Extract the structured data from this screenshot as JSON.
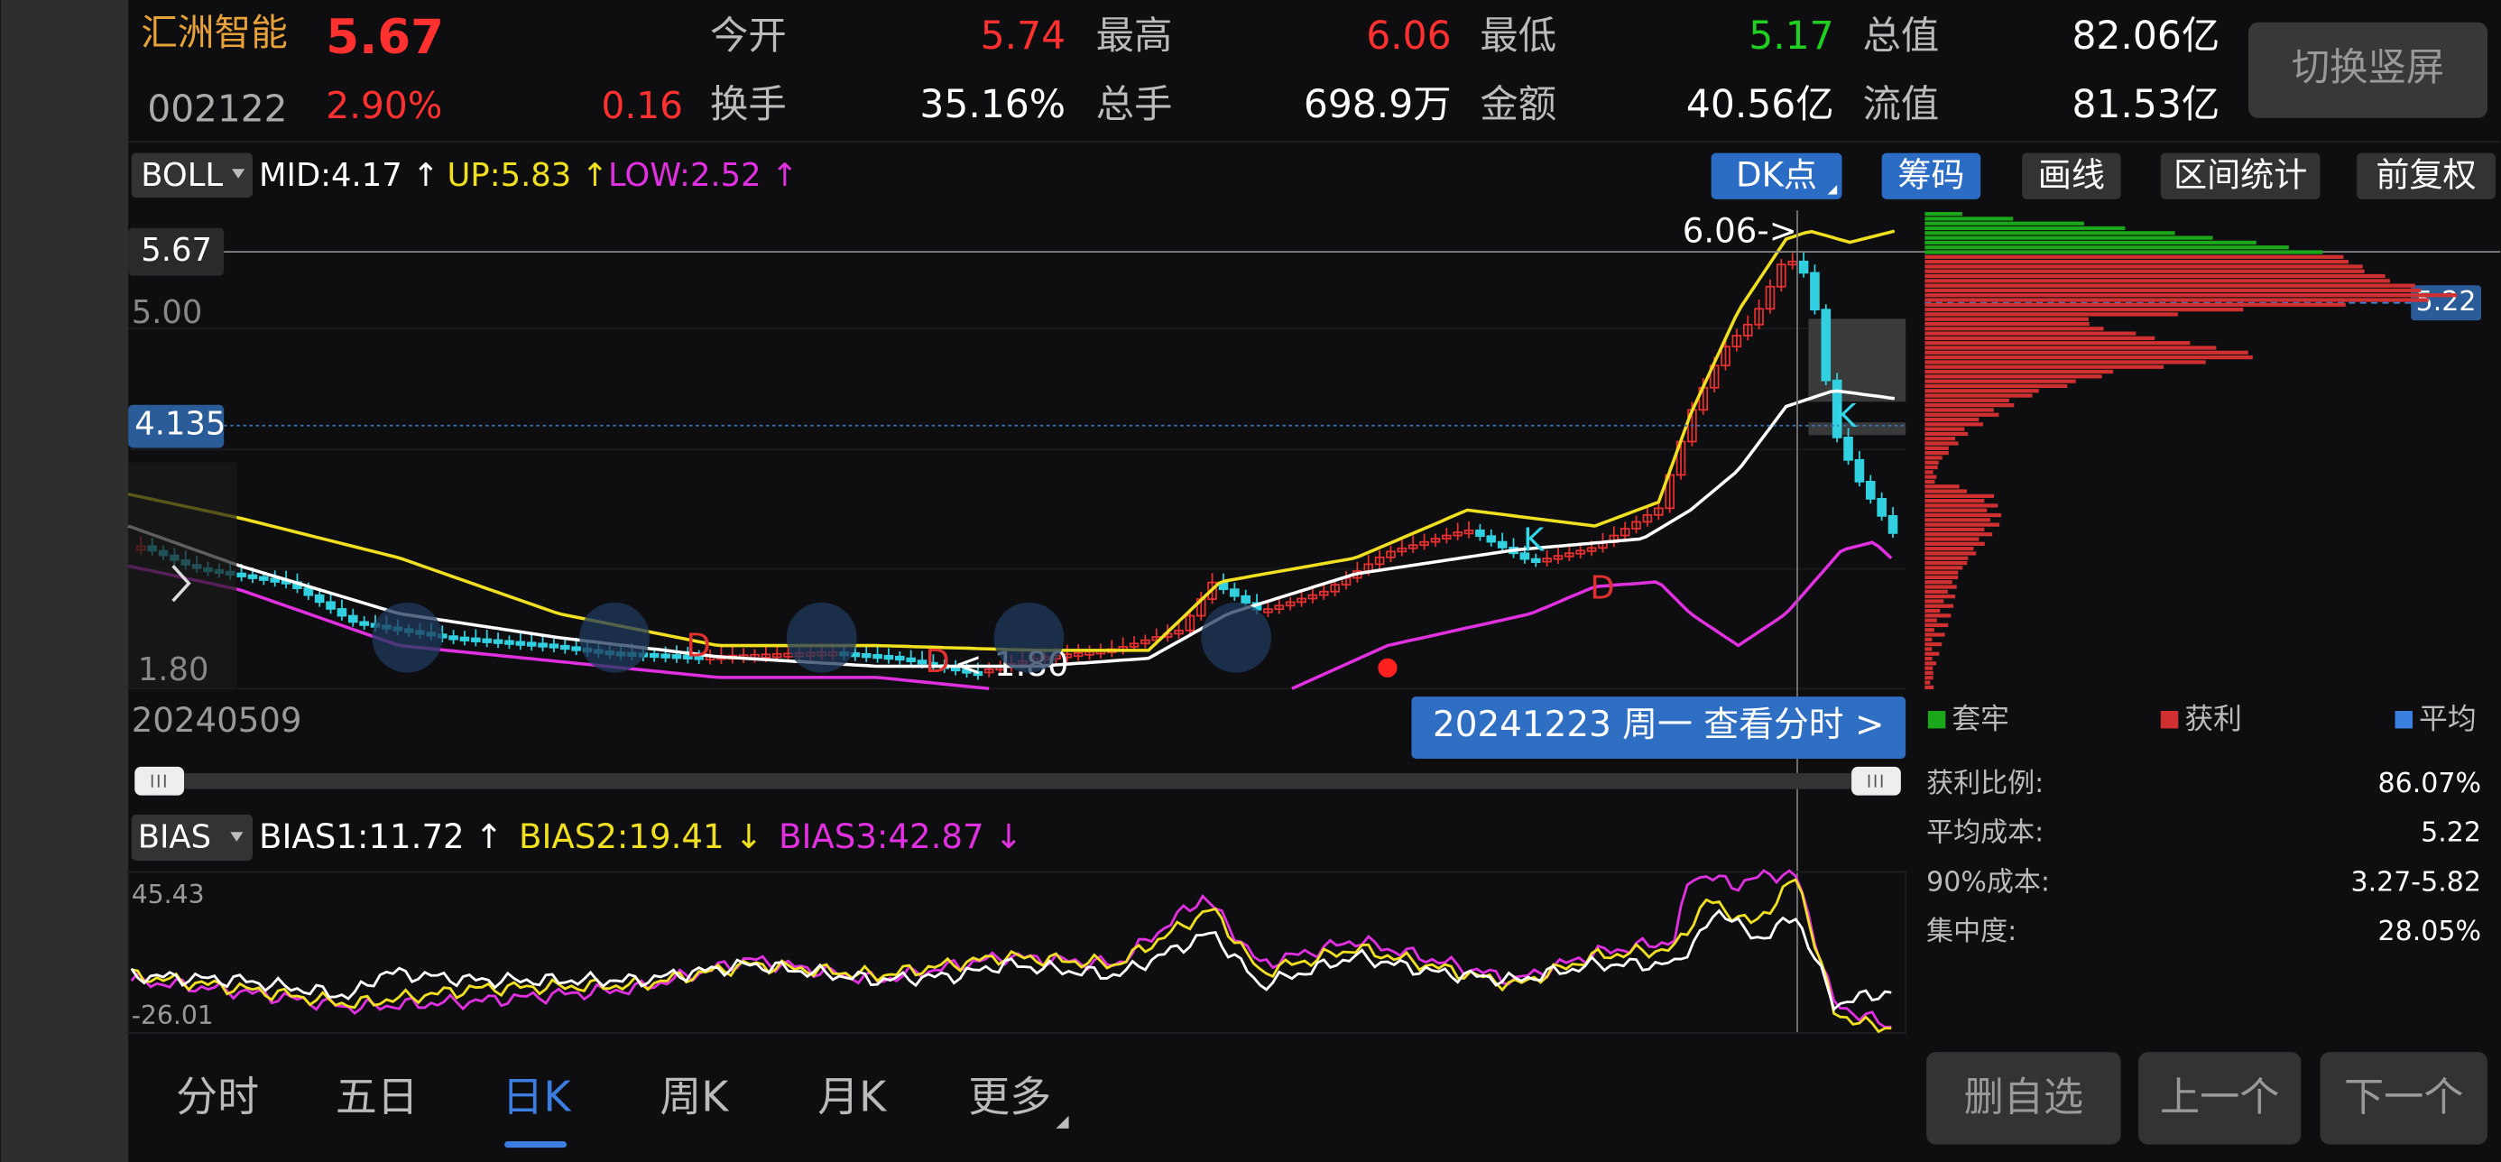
{
  "header": {
    "name": "汇洲智能",
    "price": "5.67",
    "code": "002122",
    "change_pct": "2.90%",
    "change": "0.16",
    "stats": [
      {
        "label": "今开",
        "value": "5.74"
      },
      {
        "label": "最高",
        "value": "6.06"
      },
      {
        "label": "最低",
        "value": "5.17"
      },
      {
        "label": "总值",
        "value": "82.06亿"
      },
      {
        "label": "换手",
        "value": "35.16%"
      },
      {
        "label": "总手",
        "value": "698.9万"
      },
      {
        "label": "金额",
        "value": "40.56亿"
      },
      {
        "label": "流值",
        "value": "81.53亿"
      }
    ],
    "rotate_button": "切换竖屏"
  },
  "indicator": {
    "name": "BOLL",
    "mid": "MID:4.17 ↑",
    "up": "UP:5.83 ↑",
    "low": "LOW:2.52 ↑",
    "buttons": [
      "DK点",
      "筹码",
      "画线",
      "区间统计",
      "前复权"
    ]
  },
  "price_chart": {
    "current": "5.67",
    "level_5": "5.00",
    "cursor": "4.135",
    "level_low": "1.80",
    "high_marker": "6.06->",
    "low_marker": "<-1.80",
    "chip_average": "5.22",
    "markers": [
      "K",
      "K",
      "D",
      "D",
      "D"
    ],
    "start_date": "20240509",
    "detail_button": "20241223 周一 查看分时 >"
  },
  "chips": {
    "legend": [
      "套牢",
      "获利",
      "平均"
    ],
    "stats": [
      {
        "label": "获利比例:",
        "value": "86.07%"
      },
      {
        "label": "平均成本:",
        "value": "5.22"
      },
      {
        "label": "90%成本:",
        "value": "3.27-5.82"
      },
      {
        "label": "集中度:",
        "value": "28.05%"
      }
    ]
  },
  "bias": {
    "name": "BIAS",
    "bias1": "BIAS1:11.72 ↑",
    "bias2": "BIAS2:19.41 ↓",
    "bias3": "BIAS3:42.87 ↓",
    "top": "45.43",
    "bottom": "-26.01"
  },
  "tabs": [
    "分时",
    "五日",
    "日K",
    "周K",
    "月K",
    "更多"
  ],
  "actions": [
    "删自选",
    "上一个",
    "下一个"
  ]
}
